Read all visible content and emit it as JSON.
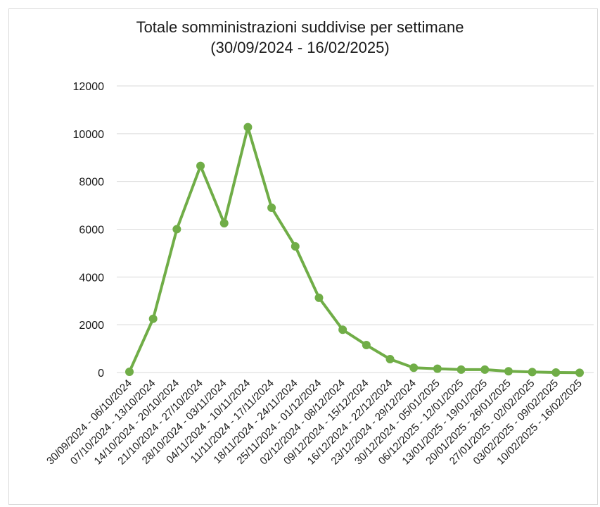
{
  "chart_data": {
    "type": "line",
    "title": "Totale somministrazioni suddivise per settimane",
    "subtitle": "(30/09/2024 - 16/02/2025)",
    "xlabel": "",
    "ylabel": "",
    "ylim": [
      0,
      12000
    ],
    "yticks": [
      0,
      2000,
      4000,
      6000,
      8000,
      10000,
      12000
    ],
    "grid": true,
    "legend": "none",
    "color": "#70ad47",
    "categories": [
      "30/09/2024 - 06/10/2024",
      "07/10/2024 - 13/10/2024",
      "14/10/2024 - 20/10/2024",
      "21/10/2024 - 27/10/2024",
      "28/10/2024 - 03/11/2024",
      "04/11/2024 - 10/11/2024",
      "11/11/2024 - 17/11/2024",
      "18/11/2024 - 24/11/2024",
      "25/11/2024 - 01/12/2024",
      "02/12/2024 - 08/12/2024",
      "09/12/2024 - 15/12/2024",
      "16/12/2024 - 22/12/2024",
      "23/12/2024 - 29/12/2024",
      "30/12/2024 - 05/01/2025",
      "06/12/2025 - 12/01/2025",
      "13/01/2025 - 19/01/2025",
      "20/01/2025 - 26/01/2025",
      "27/01/2025 - 02/02/2025",
      "03/02/2025 - 09/02/2025",
      "10/02/2025 - 16/02/2025"
    ],
    "values": [
      30,
      2250,
      6000,
      8650,
      6250,
      10270,
      6900,
      5280,
      3130,
      1790,
      1150,
      560,
      200,
      160,
      120,
      120,
      50,
      20,
      0,
      -10
    ]
  }
}
